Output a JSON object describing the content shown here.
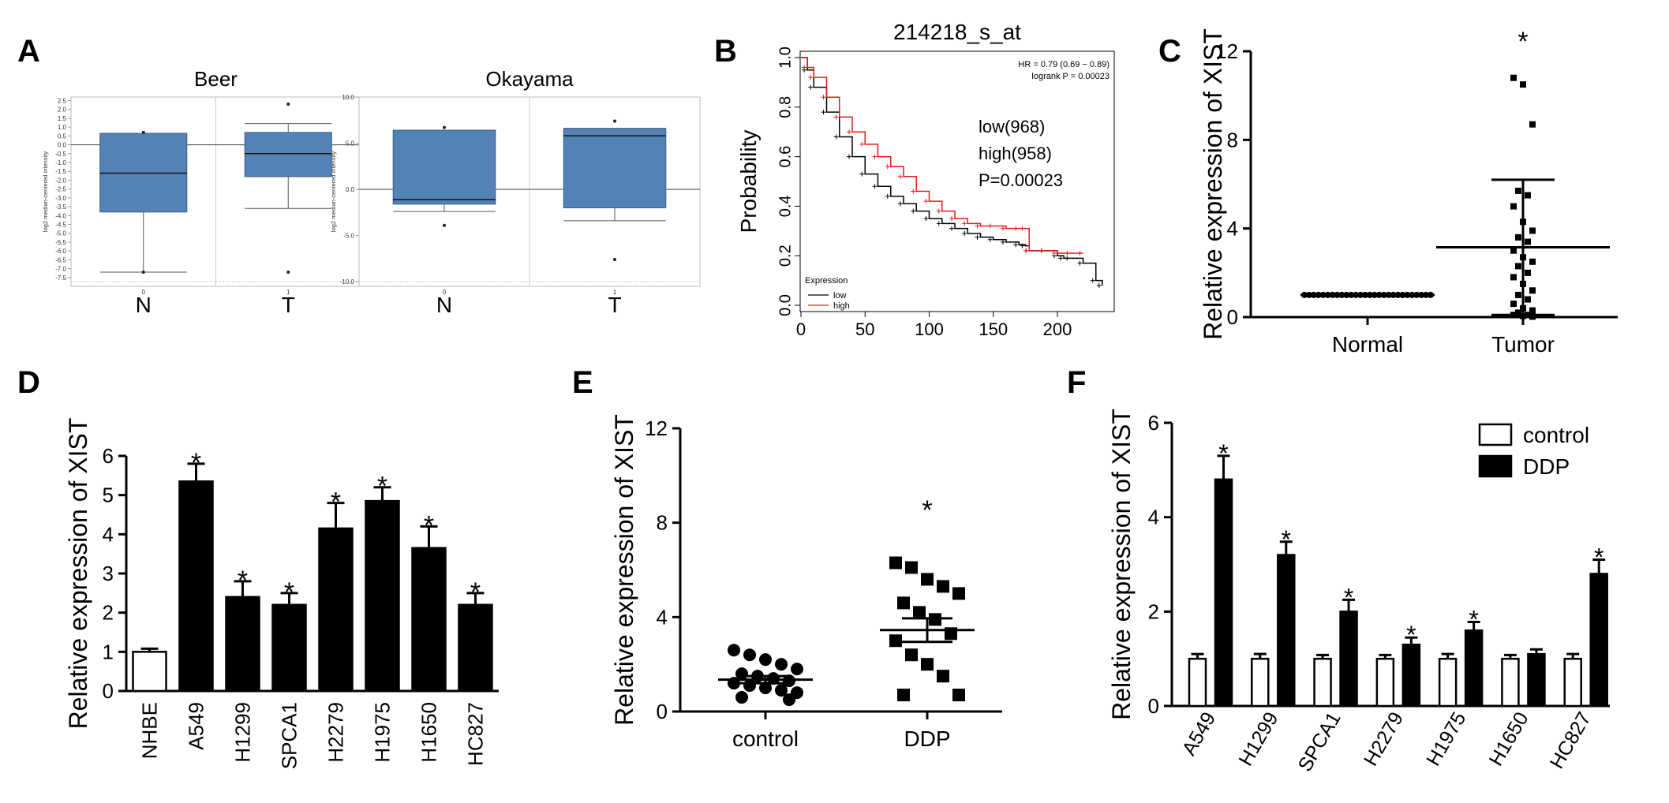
{
  "panel_labels": {
    "A": "A",
    "B": "B",
    "C": "C",
    "D": "D",
    "E": "E",
    "F": "F"
  },
  "chart_data": [
    {
      "id": "A1",
      "type": "box",
      "title": "Beer",
      "ylabel": "log2 median-centered intensity",
      "ylim": [
        -8,
        2.7
      ],
      "y_ticks": [
        "2.5",
        "2.0",
        "1.5",
        "1.0",
        "0.5",
        "0.0",
        "-0.5",
        "-1.0",
        "-1.5",
        "-2.0",
        "-2.5",
        "-3.0",
        "-3.5",
        "-4.0",
        "-4.5",
        "-5.0",
        "-5.5",
        "-6.0",
        "-6.5",
        "-7.0",
        "-7.5"
      ],
      "category_codes": [
        "0",
        "1"
      ],
      "categories": [
        "N",
        "T"
      ],
      "boxes": [
        {
          "q1": -3.8,
          "median": -1.6,
          "q3": 0.65,
          "whisker_low": -7.2,
          "whisker_high": 0.65,
          "outliers": [
            0.7,
            -7.2
          ]
        },
        {
          "q1": -1.8,
          "median": -0.5,
          "q3": 0.7,
          "whisker_low": -3.6,
          "whisker_high": 1.2,
          "outliers": [
            2.3,
            -7.2
          ]
        }
      ],
      "reference_line": 0.0
    },
    {
      "id": "A2",
      "type": "box",
      "title": "Okayama",
      "ylabel": "log2 median-centered intensity",
      "ylim": [
        -10.5,
        10
      ],
      "y_ticks": [
        "10.0",
        "5.0",
        "0.0",
        "-5.0",
        "-10.0"
      ],
      "category_codes": [
        "0",
        "1"
      ],
      "categories": [
        "N",
        "T"
      ],
      "boxes": [
        {
          "q1": -1.6,
          "median": -1.1,
          "q3": 6.4,
          "whisker_low": -2.4,
          "whisker_high": 6.4,
          "outliers": [
            6.7,
            -3.9
          ]
        },
        {
          "q1": -2.0,
          "median": 5.8,
          "q3": 6.6,
          "whisker_low": -3.4,
          "whisker_high": 6.6,
          "outliers": [
            7.4,
            -7.6
          ]
        }
      ],
      "reference_line": 0.0
    },
    {
      "id": "B",
      "type": "line",
      "title": "214218_s_at",
      "ylabel": "Probability",
      "xlim": [
        0,
        240
      ],
      "ylim": [
        0,
        1.0
      ],
      "x_ticks": [
        "0",
        "50",
        "100",
        "150",
        "200"
      ],
      "y_ticks": [
        "0.0",
        "0.2",
        "0.4",
        "0.6",
        "0.8",
        "1.0"
      ],
      "legend_title": "Expression",
      "annotation_hr": "HR = 0.79 (0.69 − 0.89)",
      "annotation_logrank": "logrank P = 0.00023",
      "annotation_low": "low(968)",
      "annotation_high": "high(958)",
      "annotation_p": "P=0.00023",
      "series": [
        {
          "name": "low",
          "color": "#000000",
          "x": [
            0,
            5,
            10,
            20,
            30,
            40,
            50,
            60,
            70,
            80,
            90,
            100,
            110,
            120,
            130,
            140,
            150,
            160,
            170,
            175,
            178,
            190,
            200,
            205,
            210,
            220,
            230,
            235
          ],
          "y": [
            1.0,
            0.95,
            0.88,
            0.78,
            0.68,
            0.6,
            0.53,
            0.48,
            0.44,
            0.41,
            0.38,
            0.35,
            0.33,
            0.31,
            0.29,
            0.275,
            0.265,
            0.255,
            0.245,
            0.24,
            0.22,
            0.22,
            0.2,
            0.19,
            0.19,
            0.17,
            0.1,
            0.08
          ]
        },
        {
          "name": "high",
          "color": "#e41a1c",
          "x": [
            0,
            5,
            10,
            20,
            30,
            40,
            50,
            60,
            70,
            80,
            90,
            100,
            110,
            120,
            130,
            140,
            150,
            160,
            170,
            175,
            178,
            190,
            200,
            210,
            220
          ],
          "y": [
            1.0,
            0.96,
            0.92,
            0.84,
            0.76,
            0.7,
            0.65,
            0.6,
            0.56,
            0.52,
            0.46,
            0.42,
            0.38,
            0.35,
            0.33,
            0.32,
            0.32,
            0.31,
            0.31,
            0.31,
            0.22,
            0.22,
            0.21,
            0.21,
            0.21
          ]
        }
      ]
    },
    {
      "id": "C",
      "type": "scatter",
      "ylabel": "Relative expression of XIST",
      "ylim": [
        0,
        12
      ],
      "y_ticks": [
        "0",
        "4",
        "8",
        "12"
      ],
      "categories": [
        "Normal",
        "Tumor"
      ],
      "star": "*",
      "groups": [
        {
          "mean": 1.0,
          "sd": 0.0,
          "values": [
            1,
            1,
            1,
            1,
            1,
            1,
            1,
            1,
            1,
            1,
            1,
            1,
            1,
            1,
            1,
            1,
            1,
            1,
            1,
            1,
            1,
            1,
            1,
            1,
            1,
            1,
            1,
            1
          ]
        },
        {
          "mean": 3.15,
          "sd": 3.05,
          "values": [
            10.8,
            10.5,
            8.7,
            5.7,
            5.5,
            5.0,
            4.3,
            3.9,
            3.6,
            3.4,
            3.0,
            2.7,
            2.5,
            2.3,
            2.0,
            1.8,
            1.5,
            1.2,
            1.0,
            0.8,
            0.6,
            0.4,
            0.3,
            0.2,
            0.1,
            0.1,
            0.05,
            0.02
          ]
        }
      ]
    },
    {
      "id": "D",
      "type": "bar",
      "ylabel": "Relative expression of XIST",
      "ylim": [
        0,
        6
      ],
      "y_ticks": [
        "0",
        "1",
        "2",
        "3",
        "4",
        "5",
        "6"
      ],
      "categories": [
        "NHBE",
        "A549",
        "H1299",
        "SPCA1",
        "H2279",
        "H1975",
        "H1650",
        "HC827"
      ],
      "values": [
        1.0,
        5.35,
        2.4,
        2.2,
        4.15,
        4.85,
        3.65,
        2.2
      ],
      "errors": [
        0.08,
        0.45,
        0.4,
        0.3,
        0.65,
        0.35,
        0.55,
        0.3
      ],
      "stars": [
        "",
        "*",
        "*",
        "*",
        "*",
        "*",
        "*",
        "*"
      ],
      "fills": [
        "#ffffff",
        "#000000",
        "#000000",
        "#000000",
        "#000000",
        "#000000",
        "#000000",
        "#000000"
      ]
    },
    {
      "id": "E",
      "type": "scatter",
      "ylabel": "Relative expression of XIST",
      "ylim": [
        0,
        12
      ],
      "y_ticks": [
        "0",
        "4",
        "8",
        "12"
      ],
      "categories": [
        "control",
        "DDP"
      ],
      "star": "*",
      "groups": [
        {
          "mean": 1.35,
          "sem": 0.15,
          "values": [
            2.6,
            2.4,
            2.2,
            2.0,
            1.8,
            1.6,
            1.5,
            1.4,
            1.3,
            1.2,
            1.1,
            1.0,
            0.9,
            0.8,
            0.6,
            0.5
          ]
        },
        {
          "mean": 3.45,
          "sem": 0.5,
          "values": [
            6.3,
            6.1,
            5.6,
            5.3,
            5.0,
            4.6,
            4.2,
            3.9,
            3.3,
            3.0,
            2.4,
            2.0,
            1.5,
            0.7,
            0.7
          ]
        }
      ]
    },
    {
      "id": "F",
      "type": "bar",
      "ylabel": "Relative expression of XIST",
      "ylim": [
        0,
        6
      ],
      "y_ticks": [
        "0",
        "2",
        "4",
        "6"
      ],
      "categories": [
        "A549",
        "H1299",
        "SPCA1",
        "H2279",
        "H1975",
        "H1650",
        "HC827"
      ],
      "series": [
        {
          "name": "control",
          "fill": "#ffffff",
          "values": [
            1.0,
            1.0,
            1.0,
            1.0,
            1.0,
            1.0,
            1.0
          ],
          "errors": [
            0.1,
            0.1,
            0.08,
            0.08,
            0.1,
            0.08,
            0.1
          ],
          "stars": [
            "",
            "",
            "",
            "",
            "",
            "",
            ""
          ]
        },
        {
          "name": "DDP",
          "fill": "#000000",
          "values": [
            4.8,
            3.2,
            2.0,
            1.3,
            1.6,
            1.1,
            2.8
          ],
          "errors": [
            0.5,
            0.28,
            0.25,
            0.15,
            0.18,
            0.1,
            0.3
          ],
          "stars": [
            "*",
            "*",
            "*",
            "*",
            "*",
            "",
            "*"
          ]
        }
      ],
      "legend_position": "top-right"
    }
  ]
}
